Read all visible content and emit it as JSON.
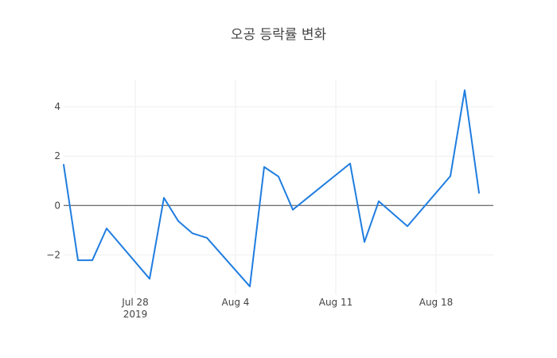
{
  "chart_data": {
    "type": "line",
    "title": "오공 등락률 변화",
    "xlabel": "",
    "ylabel": "",
    "x_range": [
      "2019-07-23",
      "2019-08-22"
    ],
    "ylim": [
      -3.6,
      5.1
    ],
    "x_ticks": [
      {
        "date": "2019-07-28",
        "label": "Jul 28",
        "sublabel": "2019"
      },
      {
        "date": "2019-08-04",
        "label": "Aug 4",
        "sublabel": ""
      },
      {
        "date": "2019-08-11",
        "label": "Aug 11",
        "sublabel": ""
      },
      {
        "date": "2019-08-18",
        "label": "Aug 18",
        "sublabel": ""
      }
    ],
    "y_ticks": [
      {
        "value": -2,
        "label": "−2"
      },
      {
        "value": 0,
        "label": "0"
      },
      {
        "value": 2,
        "label": "2"
      },
      {
        "value": 4,
        "label": "4"
      }
    ],
    "grid": true,
    "zero_line": true,
    "series": [
      {
        "name": "",
        "color": "#1f7de0",
        "x": [
          "2019-07-23",
          "2019-07-24",
          "2019-07-25",
          "2019-07-26",
          "2019-07-29",
          "2019-07-30",
          "2019-07-31",
          "2019-08-01",
          "2019-08-02",
          "2019-08-05",
          "2019-08-06",
          "2019-08-07",
          "2019-08-08",
          "2019-08-12",
          "2019-08-13",
          "2019-08-14",
          "2019-08-16",
          "2019-08-19",
          "2019-08-20",
          "2019-08-21"
        ],
        "y": [
          1.65,
          -2.22,
          -2.22,
          -0.93,
          -2.97,
          0.31,
          -0.63,
          -1.13,
          -1.31,
          -3.28,
          1.56,
          1.17,
          -0.17,
          1.7,
          -1.48,
          0.17,
          -0.84,
          1.19,
          4.67,
          0.51
        ]
      }
    ]
  }
}
